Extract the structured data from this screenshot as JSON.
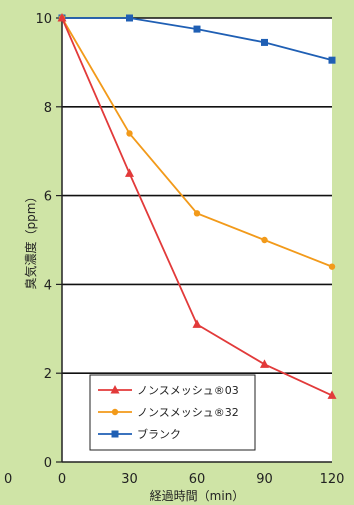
{
  "chart_data": {
    "type": "line",
    "xlabel": "経過時間（min）",
    "ylabel": "臭気濃度（ppm）",
    "x": [
      0,
      30,
      60,
      90,
      120
    ],
    "x_ticks": [
      "0",
      "30",
      "60",
      "90",
      "120"
    ],
    "y_ticks": [
      "0",
      "2",
      "4",
      "6",
      "8",
      "10"
    ],
    "xlim": [
      0,
      120
    ],
    "ylim": [
      0,
      10
    ],
    "grid": "horizontal",
    "legend_position": "bottom-left",
    "series": [
      {
        "name": "ノンスメッシュ®03",
        "marker": "triangle",
        "color": "#e23a3a",
        "values": [
          10.0,
          6.5,
          3.1,
          2.2,
          1.5
        ]
      },
      {
        "name": "ノンスメッシュ®32",
        "marker": "circle",
        "color": "#f29a1a",
        "values": [
          10.0,
          7.4,
          5.6,
          5.0,
          4.4
        ]
      },
      {
        "name": "ブランク",
        "marker": "square",
        "color": "#1f5fb4",
        "values": [
          10.0,
          10.0,
          9.75,
          9.45,
          9.05
        ]
      }
    ],
    "outside_label": "0"
  }
}
